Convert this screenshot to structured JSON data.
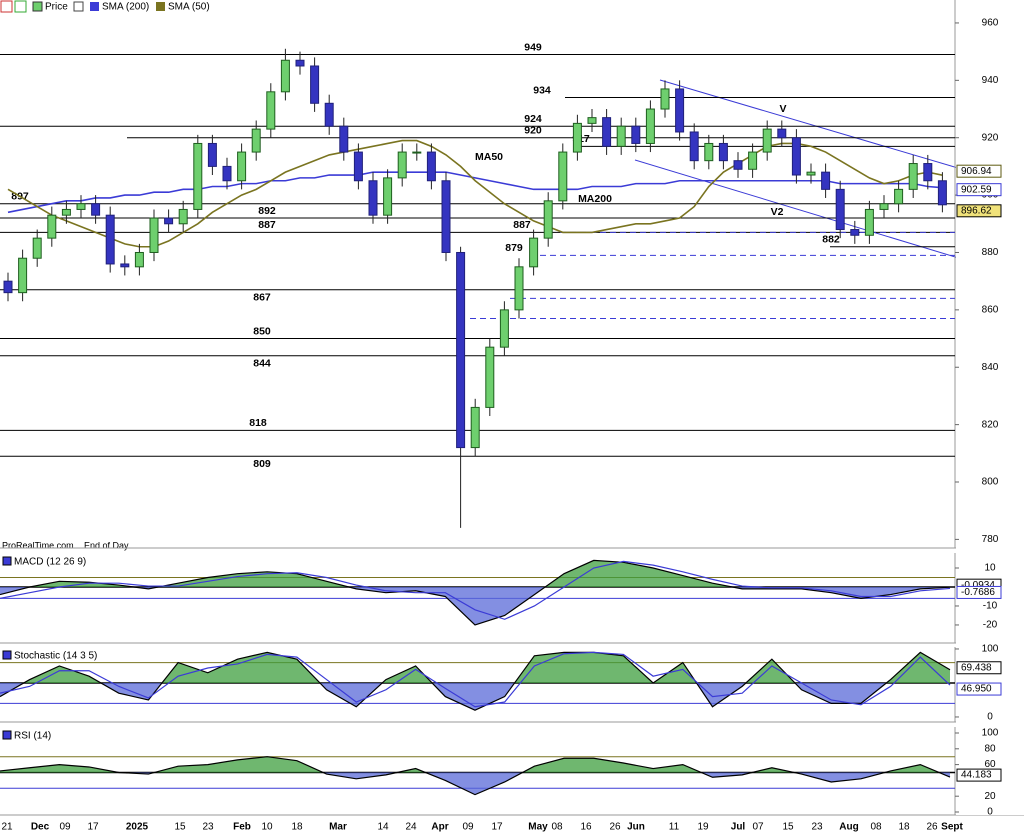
{
  "toolbar_note": "ProRealTime.com",
  "toolbar_note2": "End of Day",
  "chart_data": [
    {
      "type": "candlestick",
      "price_name": "Price",
      "open": [
        870,
        866,
        878,
        885,
        893,
        895,
        897,
        893,
        876,
        875,
        880,
        892,
        890,
        895,
        918,
        910,
        905,
        915,
        923,
        936,
        947,
        945,
        932,
        924,
        915,
        905,
        893,
        906,
        915,
        915,
        905,
        880,
        812,
        826,
        847,
        860,
        875,
        885,
        898,
        915,
        925,
        927,
        917,
        924,
        918,
        930,
        937,
        922,
        912,
        918,
        912,
        909,
        915,
        923,
        920,
        907,
        908,
        902,
        888,
        886,
        895,
        897,
        902,
        911,
        905
      ],
      "high": [
        873,
        881,
        888,
        896,
        898,
        900,
        900,
        896,
        879,
        883,
        895,
        895,
        898,
        921,
        921,
        913,
        918,
        926,
        939,
        951,
        950,
        948,
        935,
        927,
        918,
        908,
        909,
        918,
        918,
        918,
        908,
        882,
        829,
        850,
        863,
        878,
        888,
        901,
        918,
        928,
        930,
        930,
        927,
        927,
        933,
        940,
        940,
        925,
        921,
        921,
        915,
        918,
        926,
        926,
        923,
        911,
        911,
        905,
        891,
        898,
        900,
        905,
        914,
        914,
        908
      ],
      "low": [
        863,
        863,
        875,
        882,
        890,
        892,
        890,
        873,
        872,
        872,
        877,
        887,
        887,
        892,
        907,
        902,
        902,
        912,
        920,
        933,
        942,
        929,
        921,
        912,
        902,
        890,
        890,
        903,
        912,
        902,
        877,
        784,
        809,
        823,
        844,
        857,
        872,
        882,
        895,
        912,
        922,
        914,
        914,
        915,
        915,
        927,
        919,
        909,
        909,
        909,
        906,
        906,
        912,
        917,
        904,
        904,
        899,
        885,
        883,
        883,
        892,
        894,
        899,
        902,
        894
      ],
      "close": [
        866,
        878,
        885,
        893,
        895,
        897,
        893,
        876,
        875,
        880,
        892,
        890,
        895,
        918,
        910,
        905,
        915,
        923,
        936,
        947,
        945,
        932,
        924,
        915,
        905,
        893,
        906,
        915,
        915,
        905,
        880,
        812,
        826,
        847,
        860,
        875,
        885,
        898,
        915,
        925,
        927,
        917,
        924,
        918,
        930,
        937,
        922,
        912,
        918,
        912,
        909,
        915,
        923,
        920,
        907,
        908,
        902,
        888,
        886,
        895,
        897,
        902,
        911,
        905,
        896.62
      ],
      "series": [
        {
          "name": "SMA (200)",
          "color": "#3b3bd6",
          "values": [
            894,
            895,
            896,
            897,
            898,
            898,
            899,
            899,
            900,
            900,
            901,
            901,
            902,
            902,
            903,
            903,
            904,
            904,
            905,
            905,
            906,
            906,
            907,
            907,
            907,
            908,
            908,
            908,
            908,
            908,
            908,
            907,
            906,
            905,
            904,
            903,
            902,
            902,
            902,
            902,
            903,
            903,
            903,
            904,
            904,
            904,
            905,
            905,
            905,
            905,
            905,
            905,
            905,
            905,
            905,
            905,
            905,
            904,
            904,
            904,
            904,
            904,
            904,
            903,
            902.59
          ]
        },
        {
          "name": "SMA (50)",
          "color": "#7a7420",
          "values": [
            902,
            899,
            896,
            893,
            891,
            889,
            887,
            885,
            883,
            882,
            882,
            884,
            887,
            890,
            894,
            897,
            900,
            902,
            905,
            908,
            910,
            912,
            914,
            915,
            916,
            917,
            918,
            919,
            919,
            917,
            914,
            910,
            905,
            901,
            897,
            894,
            891,
            889,
            887,
            887,
            887,
            888,
            889,
            890,
            890,
            891,
            892,
            896,
            903,
            908,
            911,
            914,
            917,
            918,
            918,
            917,
            915,
            912,
            909,
            906,
            904,
            905,
            907,
            908,
            906.94
          ]
        }
      ],
      "ylim": [
        777,
        968
      ],
      "yticks": [
        780,
        800,
        820,
        840,
        860,
        880,
        900,
        920,
        940,
        960
      ],
      "levels": [
        949,
        934,
        924,
        920,
        917,
        897,
        892,
        887,
        882,
        867,
        850,
        844,
        818,
        809
      ],
      "dashed_levels": [
        887,
        879,
        864,
        857
      ],
      "annotations": [
        "MA50",
        "MA200",
        "V",
        "V2"
      ]
    },
    {
      "type": "line",
      "title": "MACD (12 26 9)",
      "ylim": [
        -29.5,
        17.9
      ],
      "yticks": [
        10,
        -10,
        -20
      ],
      "levels": [
        5,
        0,
        -6
      ],
      "base": 0,
      "series": [
        {
          "color": "#000000",
          "values": [
            -4,
            0,
            3,
            2.5,
            1,
            -1,
            2,
            5,
            7,
            8,
            7,
            3,
            -1,
            -3,
            -2,
            -5,
            -20,
            -15,
            -4,
            7,
            14,
            13,
            10,
            6,
            2,
            -1,
            -1,
            -1,
            -3,
            -6,
            -4,
            -1,
            -0.0934
          ]
        },
        {
          "color": "#3b3bd6",
          "values": [
            -6,
            -3,
            0,
            2,
            2,
            0.5,
            0.5,
            3,
            5.5,
            7,
            7.5,
            5,
            1,
            -2,
            -3,
            -3,
            -12,
            -17,
            -10,
            0,
            10,
            13.5,
            11.5,
            8,
            4,
            0.5,
            -0.5,
            -0.5,
            -2,
            -5,
            -5,
            -2,
            -0.7686
          ]
        }
      ]
    },
    {
      "type": "line",
      "title": "Stochastic (14 3 5)",
      "ylim": [
        -7.4,
        102.9
      ],
      "yticks": [
        0,
        100
      ],
      "levels": [
        80,
        50,
        20
      ],
      "base": 50,
      "series": [
        {
          "color": "#000000",
          "values": [
            30,
            55,
            75,
            60,
            35,
            25,
            80,
            65,
            85,
            95,
            85,
            40,
            15,
            55,
            75,
            30,
            10,
            30,
            90,
            95,
            95,
            90,
            50,
            80,
            15,
            45,
            85,
            40,
            20,
            20,
            55,
            95,
            69.438
          ]
        },
        {
          "color": "#3b3bd6",
          "end_label": "46.950",
          "values": [
            35,
            45,
            68,
            68,
            45,
            28,
            60,
            72,
            78,
            92,
            88,
            55,
            22,
            40,
            70,
            42,
            15,
            22,
            75,
            93,
            95,
            92,
            60,
            70,
            30,
            35,
            75,
            50,
            25,
            18,
            45,
            88,
            46.95
          ]
        }
      ]
    },
    {
      "type": "line",
      "title": "RSI (14)",
      "ylim": [
        -3.8,
        107.6
      ],
      "yticks": [
        100,
        80,
        60,
        20,
        0
      ],
      "levels": [
        70,
        50,
        30
      ],
      "base": 50,
      "series": [
        {
          "color": "#000000",
          "values": [
            52,
            56,
            60,
            57,
            50,
            48,
            58,
            60,
            66,
            70,
            65,
            48,
            42,
            47,
            55,
            40,
            22,
            38,
            58,
            68,
            68,
            62,
            55,
            60,
            44,
            47,
            56,
            48,
            38,
            42,
            52,
            60,
            44.183
          ]
        }
      ],
      "x_axis_labels": [
        "21",
        "Dec",
        "09",
        "17",
        "2025",
        "15",
        "23",
        "Feb",
        "10",
        "18",
        "Mar",
        "14",
        "24",
        "Apr",
        "09",
        "17",
        "May",
        "08",
        "16",
        "26",
        "Jun",
        "11",
        "19",
        "Jul",
        "07",
        "15",
        "23",
        "Aug",
        "08",
        "18",
        "26",
        "Sept"
      ]
    }
  ]
}
